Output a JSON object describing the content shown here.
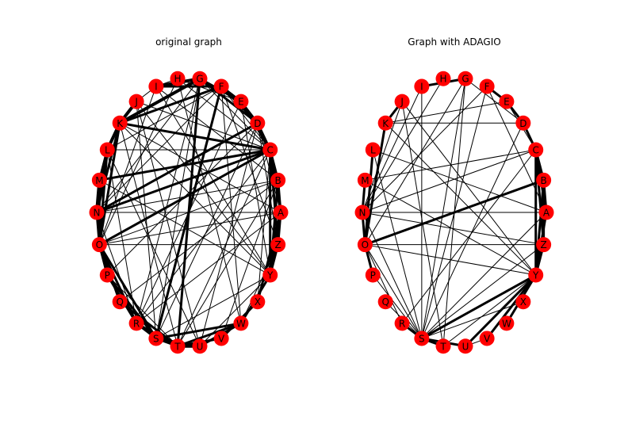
{
  "figure": {
    "left_title": "original graph",
    "right_title": "Graph with ADAGIO"
  },
  "colors": {
    "node_fill": "#ff0000",
    "edge": "#000000",
    "background": "#ffffff"
  },
  "nodes": [
    "A",
    "B",
    "C",
    "D",
    "E",
    "F",
    "G",
    "H",
    "I",
    "J",
    "K",
    "L",
    "M",
    "N",
    "O",
    "P",
    "Q",
    "R",
    "S",
    "T",
    "U",
    "V",
    "W",
    "X",
    "Y",
    "Z"
  ],
  "graphs": [
    {
      "id": "original",
      "edges": [
        [
          "G",
          "I",
          4
        ],
        [
          "G",
          "E",
          3
        ],
        [
          "G",
          "K",
          4
        ],
        [
          "G",
          "T",
          3
        ],
        [
          "G",
          "S",
          1
        ],
        [
          "G",
          "R",
          1
        ],
        [
          "G",
          "N",
          1
        ],
        [
          "G",
          "C",
          1
        ],
        [
          "F",
          "K",
          3
        ],
        [
          "F",
          "S",
          3
        ],
        [
          "F",
          "W",
          1
        ],
        [
          "F",
          "N",
          1
        ],
        [
          "F",
          "L",
          1
        ],
        [
          "F",
          "I",
          3
        ],
        [
          "F",
          "Z",
          1
        ],
        [
          "H",
          "I",
          1
        ],
        [
          "H",
          "C",
          1
        ],
        [
          "H",
          "O",
          1
        ],
        [
          "H",
          "W",
          1
        ],
        [
          "I",
          "J",
          1
        ],
        [
          "I",
          "Y",
          1
        ],
        [
          "I",
          "B",
          1
        ],
        [
          "I",
          "O",
          1
        ],
        [
          "J",
          "K",
          4
        ],
        [
          "J",
          "C",
          1
        ],
        [
          "J",
          "Y",
          1
        ],
        [
          "J",
          "U",
          1
        ],
        [
          "J",
          "S",
          1
        ],
        [
          "K",
          "C",
          3
        ],
        [
          "K",
          "L",
          4
        ],
        [
          "K",
          "T",
          1
        ],
        [
          "K",
          "O",
          3
        ],
        [
          "K",
          "Y",
          1
        ],
        [
          "K",
          "A",
          1
        ],
        [
          "K",
          "N",
          3
        ],
        [
          "L",
          "M",
          3
        ],
        [
          "L",
          "C",
          1
        ],
        [
          "L",
          "N",
          3
        ],
        [
          "L",
          "O",
          3
        ],
        [
          "L",
          "U",
          1
        ],
        [
          "L",
          "R",
          1
        ],
        [
          "M",
          "N",
          4
        ],
        [
          "M",
          "O",
          3
        ],
        [
          "M",
          "C",
          3
        ],
        [
          "M",
          "Y",
          1
        ],
        [
          "N",
          "O",
          3
        ],
        [
          "N",
          "P",
          3
        ],
        [
          "N",
          "A",
          1
        ],
        [
          "N",
          "B",
          1
        ],
        [
          "N",
          "D",
          3
        ],
        [
          "N",
          "R",
          1
        ],
        [
          "N",
          "C",
          3
        ],
        [
          "O",
          "P",
          3
        ],
        [
          "O",
          "Q",
          3
        ],
        [
          "O",
          "C",
          3
        ],
        [
          "O",
          "Z",
          1
        ],
        [
          "O",
          "R",
          3
        ],
        [
          "O",
          "S",
          3
        ],
        [
          "O",
          "B",
          1
        ],
        [
          "O",
          "A",
          1
        ],
        [
          "P",
          "R",
          3
        ],
        [
          "P",
          "S",
          3
        ],
        [
          "P",
          "T",
          1
        ],
        [
          "P",
          "D",
          1
        ],
        [
          "Q",
          "T",
          3
        ],
        [
          "Q",
          "B",
          1
        ],
        [
          "R",
          "T",
          3
        ],
        [
          "R",
          "S",
          3
        ],
        [
          "R",
          "C",
          1
        ],
        [
          "R",
          "A",
          1
        ],
        [
          "R",
          "E",
          1
        ],
        [
          "S",
          "T",
          3
        ],
        [
          "S",
          "U",
          3
        ],
        [
          "S",
          "W",
          3
        ],
        [
          "S",
          "Y",
          1
        ],
        [
          "S",
          "D",
          1
        ],
        [
          "T",
          "U",
          4
        ],
        [
          "T",
          "V",
          3
        ],
        [
          "T",
          "W",
          3
        ],
        [
          "T",
          "B",
          1
        ],
        [
          "T",
          "C",
          1
        ],
        [
          "U",
          "W",
          3
        ],
        [
          "U",
          "Y",
          1
        ],
        [
          "U",
          "D",
          1
        ],
        [
          "V",
          "X",
          3
        ],
        [
          "V",
          "B",
          1
        ],
        [
          "W",
          "Y",
          3
        ],
        [
          "W",
          "Z",
          1
        ],
        [
          "X",
          "A",
          3
        ],
        [
          "X",
          "C",
          1
        ],
        [
          "Y",
          "Z",
          3
        ],
        [
          "Y",
          "A",
          3
        ],
        [
          "Y",
          "C",
          3
        ],
        [
          "Y",
          "B",
          3
        ],
        [
          "Y",
          "E",
          1
        ],
        [
          "Z",
          "A",
          3
        ],
        [
          "Z",
          "C",
          3
        ],
        [
          "Z",
          "D",
          1
        ],
        [
          "A",
          "B",
          3
        ],
        [
          "A",
          "C",
          3
        ],
        [
          "A",
          "D",
          1
        ],
        [
          "B",
          "C",
          3
        ],
        [
          "B",
          "D",
          1
        ],
        [
          "C",
          "D",
          3
        ],
        [
          "C",
          "E",
          3
        ],
        [
          "C",
          "F",
          1
        ],
        [
          "D",
          "E",
          3
        ],
        [
          "D",
          "F",
          3
        ],
        [
          "D",
          "G",
          3
        ],
        [
          "E",
          "F",
          3
        ],
        [
          "E",
          "H",
          1
        ]
      ]
    },
    {
      "id": "adagio",
      "edges": [
        [
          "G",
          "I",
          3
        ],
        [
          "G",
          "D",
          1
        ],
        [
          "G",
          "O",
          1
        ],
        [
          "G",
          "S",
          1
        ],
        [
          "F",
          "E",
          3
        ],
        [
          "F",
          "A",
          1
        ],
        [
          "F",
          "N",
          1
        ],
        [
          "F",
          "S",
          1
        ],
        [
          "I",
          "S",
          1
        ],
        [
          "I",
          "N",
          1
        ],
        [
          "J",
          "N",
          1
        ],
        [
          "J",
          "Y",
          1
        ],
        [
          "J",
          "T",
          1
        ],
        [
          "K",
          "O",
          3
        ],
        [
          "K",
          "E",
          1
        ],
        [
          "K",
          "Y",
          1
        ],
        [
          "K",
          "D",
          1
        ],
        [
          "K",
          "J",
          3
        ],
        [
          "L",
          "O",
          3
        ],
        [
          "L",
          "A",
          1
        ],
        [
          "L",
          "S",
          1
        ],
        [
          "M",
          "N",
          3
        ],
        [
          "M",
          "C",
          1
        ],
        [
          "M",
          "Y",
          1
        ],
        [
          "N",
          "O",
          3
        ],
        [
          "N",
          "A",
          1
        ],
        [
          "N",
          "C",
          1
        ],
        [
          "N",
          "Z",
          1
        ],
        [
          "N",
          "S",
          1
        ],
        [
          "N",
          "H",
          1
        ],
        [
          "O",
          "P",
          3
        ],
        [
          "O",
          "Z",
          1
        ],
        [
          "O",
          "R",
          1
        ],
        [
          "O",
          "B",
          3
        ],
        [
          "O",
          "Y",
          1
        ],
        [
          "O",
          "S",
          1
        ],
        [
          "P",
          "S",
          1
        ],
        [
          "Q",
          "S",
          1
        ],
        [
          "R",
          "S",
          3
        ],
        [
          "R",
          "C",
          1
        ],
        [
          "S",
          "T",
          3
        ],
        [
          "S",
          "U",
          3
        ],
        [
          "S",
          "Y",
          3
        ],
        [
          "S",
          "D",
          1
        ],
        [
          "S",
          "A",
          1
        ],
        [
          "S",
          "Z",
          1
        ],
        [
          "S",
          "X",
          1
        ],
        [
          "T",
          "Y",
          1
        ],
        [
          "T",
          "G",
          1
        ],
        [
          "U",
          "Y",
          3
        ],
        [
          "U",
          "V",
          1
        ],
        [
          "V",
          "Y",
          3
        ],
        [
          "W",
          "Y",
          3
        ],
        [
          "Y",
          "Z",
          3
        ],
        [
          "Y",
          "A",
          3
        ],
        [
          "Y",
          "B",
          3
        ],
        [
          "Y",
          "C",
          3
        ],
        [
          "Z",
          "C",
          3
        ],
        [
          "Z",
          "B",
          3
        ],
        [
          "A",
          "B",
          3
        ],
        [
          "A",
          "C",
          3
        ],
        [
          "B",
          "C",
          3
        ],
        [
          "C",
          "D",
          3
        ],
        [
          "D",
          "E",
          3
        ],
        [
          "E",
          "C",
          1
        ]
      ]
    }
  ]
}
